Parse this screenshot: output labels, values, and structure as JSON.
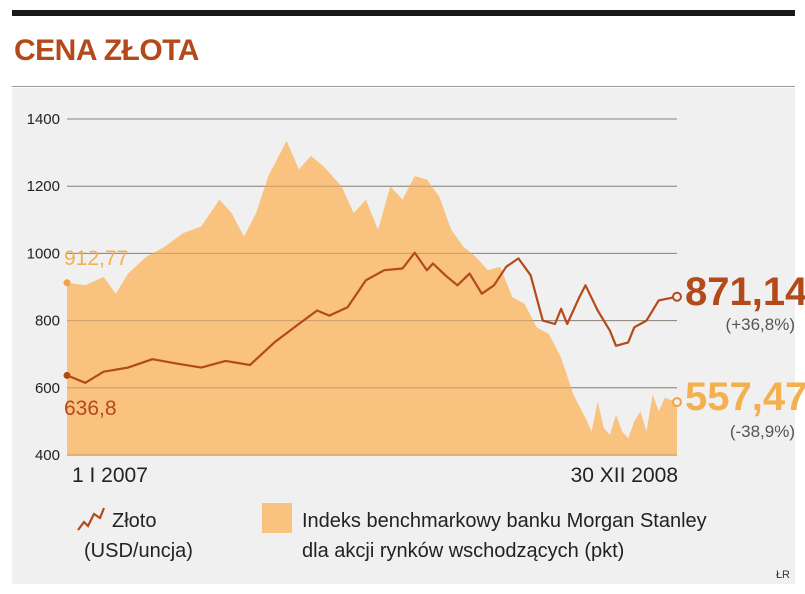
{
  "title": "CENA ZŁOTA",
  "credit": "ŁR",
  "chart_data": {
    "type": "line",
    "title": "CENA ZŁOTA",
    "x_labels": [
      "1 I 2007",
      "30 XII 2008"
    ],
    "ylim": [
      400,
      1400
    ],
    "y_ticks": [
      400,
      600,
      800,
      1000,
      1200,
      1400
    ],
    "y_tick_labels": [
      "400",
      "600",
      "800",
      "1000",
      "1200",
      "1400"
    ],
    "grid": true,
    "series": [
      {
        "name": "Złoto",
        "name2": "(USD/uncja)",
        "type": "line",
        "color": "#b4491a",
        "start_value": 636.8,
        "start_label": "636,8",
        "end_value": 871.14,
        "end_label": "871,14",
        "change_label": "(+36,8%)",
        "x": [
          0,
          0.03,
          0.06,
          0.1,
          0.14,
          0.18,
          0.22,
          0.26,
          0.3,
          0.34,
          0.38,
          0.41,
          0.43,
          0.46,
          0.49,
          0.52,
          0.55,
          0.57,
          0.59,
          0.6,
          0.62,
          0.64,
          0.66,
          0.68,
          0.7,
          0.72,
          0.74,
          0.76,
          0.78,
          0.8,
          0.81,
          0.82,
          0.84,
          0.85,
          0.87,
          0.88,
          0.89,
          0.9,
          0.92,
          0.93,
          0.95,
          0.97,
          1.0
        ],
        "values": [
          636.8,
          615,
          648,
          660,
          685,
          672,
          660,
          680,
          668,
          735,
          790,
          830,
          815,
          840,
          920,
          950,
          955,
          1002,
          950,
          970,
          935,
          905,
          940,
          880,
          905,
          960,
          985,
          935,
          800,
          790,
          835,
          790,
          870,
          905,
          830,
          800,
          770,
          725,
          735,
          780,
          800,
          860,
          871.14
        ]
      },
      {
        "name": "Indeks benchmarkowy banku Morgan Stanley",
        "name2": "dla akcji rynków wschodzących (pkt)",
        "type": "area",
        "color": "#f9c27e",
        "start_value": 912.77,
        "start_label": "912,77",
        "end_value": 557.47,
        "end_label": "557,47",
        "change_label": "(-38,9%)",
        "x": [
          0,
          0.03,
          0.06,
          0.08,
          0.1,
          0.13,
          0.16,
          0.19,
          0.22,
          0.25,
          0.27,
          0.29,
          0.31,
          0.33,
          0.35,
          0.36,
          0.38,
          0.4,
          0.42,
          0.43,
          0.45,
          0.47,
          0.49,
          0.51,
          0.53,
          0.55,
          0.57,
          0.59,
          0.61,
          0.63,
          0.65,
          0.67,
          0.69,
          0.71,
          0.73,
          0.75,
          0.77,
          0.79,
          0.81,
          0.83,
          0.85,
          0.86,
          0.87,
          0.88,
          0.89,
          0.9,
          0.91,
          0.92,
          0.93,
          0.94,
          0.95,
          0.96,
          0.97,
          0.98,
          1.0
        ],
        "values": [
          912.77,
          905,
          930,
          880,
          940,
          990,
          1020,
          1060,
          1080,
          1160,
          1120,
          1050,
          1120,
          1230,
          1300,
          1335,
          1250,
          1290,
          1260,
          1240,
          1200,
          1120,
          1160,
          1070,
          1200,
          1160,
          1230,
          1220,
          1170,
          1070,
          1020,
          990,
          950,
          960,
          870,
          850,
          780,
          760,
          690,
          580,
          510,
          470,
          560,
          480,
          460,
          520,
          470,
          450,
          500,
          530,
          470,
          580,
          530,
          570,
          557.47
        ]
      }
    ]
  }
}
